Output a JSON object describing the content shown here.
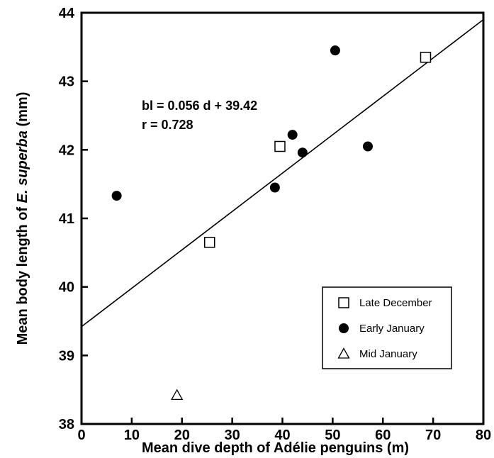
{
  "chart_data": {
    "type": "scatter",
    "xlabel": "Mean dive depth of Adélie penguins (m)",
    "ylabel_parts": [
      "Mean body length of ",
      "E. superba",
      " (mm)"
    ],
    "xlim": [
      0,
      80
    ],
    "ylim": [
      38,
      44
    ],
    "x_ticks": [
      "0",
      "10",
      "20",
      "30",
      "40",
      "50",
      "60",
      "70",
      "80"
    ],
    "y_ticks": [
      "38",
      "39",
      "40",
      "41",
      "42",
      "43",
      "44"
    ],
    "grid": false,
    "legend_position": "bottom-right",
    "annotations": [
      "bl = 0.056 d + 39.42",
      "r = 0.728"
    ],
    "regression": {
      "slope": 0.056,
      "intercept": 39.42,
      "x_range": [
        0,
        80
      ]
    },
    "series": [
      {
        "name": "Late December",
        "marker": "open-square",
        "points": [
          [
            25.5,
            40.65
          ],
          [
            39.5,
            42.05
          ],
          [
            68.5,
            43.35
          ]
        ]
      },
      {
        "name": "Early January",
        "marker": "filled-circle",
        "points": [
          [
            7,
            41.33
          ],
          [
            38.5,
            41.45
          ],
          [
            42,
            42.22
          ],
          [
            44,
            41.96
          ],
          [
            50.5,
            43.45
          ],
          [
            57,
            42.05
          ]
        ]
      },
      {
        "name": "Mid January",
        "marker": "open-triangle",
        "points": [
          [
            19,
            38.42
          ]
        ]
      }
    ]
  }
}
